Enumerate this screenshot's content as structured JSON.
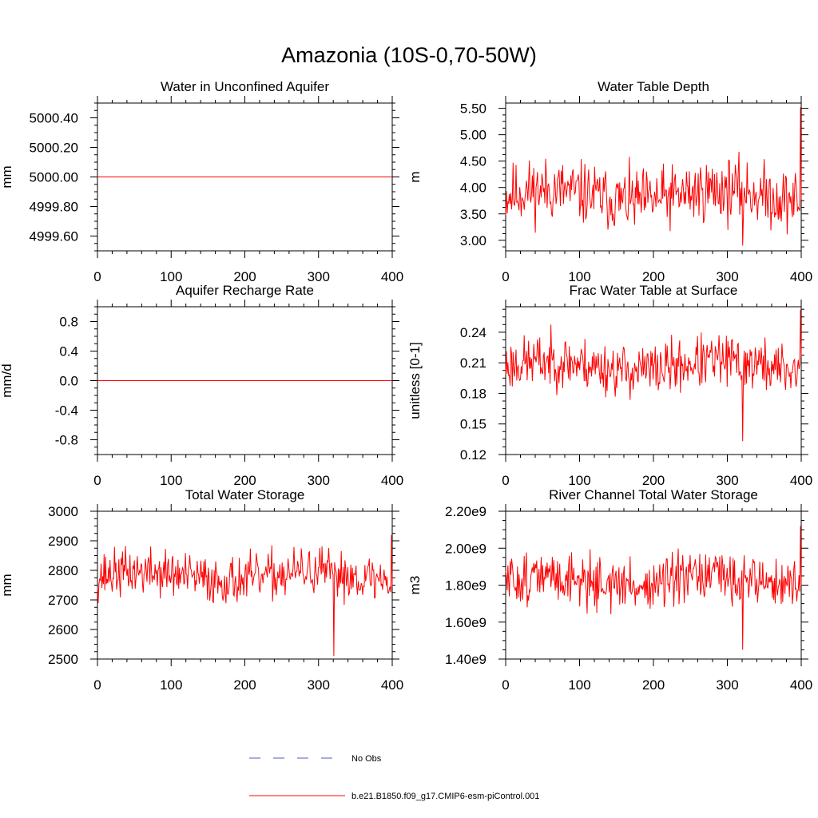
{
  "figure_title": "Amazonia (10S-0,70-50W)",
  "legend": [
    {
      "label": "No Obs",
      "color": "#4a5ec0",
      "dash": "dashed"
    },
    {
      "label": "b.e21.B1850.f09_g17.CMIP6-esm-piControl.001",
      "color": "#ff0000",
      "dash": "solid"
    }
  ],
  "chart_data": [
    {
      "type": "line",
      "title": "Water in Unconfined Aquifer",
      "xlabel": "",
      "ylabel": "mm",
      "xlim": [
        0,
        400
      ],
      "ylim": [
        4999.5,
        5000.5
      ],
      "xticks": [
        0,
        100,
        200,
        300,
        400
      ],
      "yticks": [
        4999.6,
        4999.8,
        5000.0,
        5000.2,
        5000.4
      ],
      "ytick_labels": [
        "4999.60",
        "4999.80",
        "5000.00",
        "5000.20",
        "5000.40"
      ],
      "series": [
        {
          "name": "b.e21.B1850.f09_g17.CMIP6-esm-piControl.001",
          "color": "#ff0000",
          "constant": 5000.0,
          "n": 400
        }
      ]
    },
    {
      "type": "line",
      "title": "Water Table Depth",
      "xlabel": "",
      "ylabel": "m",
      "xlim": [
        0,
        400
      ],
      "ylim": [
        2.8,
        5.6
      ],
      "xticks": [
        0,
        100,
        200,
        300,
        400
      ],
      "yticks": [
        3.0,
        3.5,
        4.0,
        4.5,
        5.0,
        5.5
      ],
      "ytick_labels": [
        "3.00",
        "3.50",
        "4.00",
        "4.50",
        "5.00",
        "5.50"
      ],
      "series": [
        {
          "name": "b.e21.B1850.f09_g17.CMIP6-esm-piControl.001",
          "color": "#ff0000",
          "mean": 3.85,
          "spread": 0.55,
          "min": 2.9,
          "max": 5.52,
          "n": 400,
          "seed": 11
        }
      ]
    },
    {
      "type": "line",
      "title": "Aquifer Recharge Rate",
      "xlabel": "",
      "ylabel": "mm/d",
      "xlim": [
        0,
        400
      ],
      "ylim": [
        -1.0,
        1.0
      ],
      "xticks": [
        0,
        100,
        200,
        300,
        400
      ],
      "yticks": [
        -0.8,
        -0.4,
        0.0,
        0.4,
        0.8
      ],
      "ytick_labels": [
        "-0.8",
        "-0.4",
        "0.0",
        "0.4",
        "0.8"
      ],
      "series": [
        {
          "name": "b.e21.B1850.f09_g17.CMIP6-esm-piControl.001",
          "color": "#ff0000",
          "constant": 0.0,
          "n": 400
        }
      ]
    },
    {
      "type": "line",
      "title": "Frac Water Table at Surface",
      "xlabel": "",
      "ylabel": "unitless [0-1]",
      "xlim": [
        0,
        400
      ],
      "ylim": [
        0.12,
        0.265
      ],
      "xticks": [
        0,
        100,
        200,
        300,
        400
      ],
      "yticks": [
        0.12,
        0.15,
        0.18,
        0.21,
        0.24
      ],
      "ytick_labels": [
        "0.12",
        "0.15",
        "0.18",
        "0.21",
        "0.24"
      ],
      "series": [
        {
          "name": "b.e21.B1850.f09_g17.CMIP6-esm-piControl.001",
          "color": "#ff0000",
          "mean": 0.207,
          "spread": 0.024,
          "min": 0.133,
          "max": 0.262,
          "n": 400,
          "seed": 23
        }
      ]
    },
    {
      "type": "line",
      "title": "Total Water Storage",
      "xlabel": "",
      "ylabel": "mm",
      "xlim": [
        0,
        400
      ],
      "ylim": [
        2500,
        3000
      ],
      "xticks": [
        0,
        100,
        200,
        300,
        400
      ],
      "yticks": [
        2500,
        2600,
        2700,
        2800,
        2900,
        3000
      ],
      "ytick_labels": [
        "2500",
        "2600",
        "2700",
        "2800",
        "2900",
        "3000"
      ],
      "series": [
        {
          "name": "b.e21.B1850.f09_g17.CMIP6-esm-piControl.001",
          "color": "#ff0000",
          "mean": 2780,
          "spread": 75,
          "min": 2510,
          "max": 2920,
          "n": 400,
          "seed": 37
        }
      ]
    },
    {
      "type": "line",
      "title": "River Channel Total Water Storage",
      "xlabel": "",
      "ylabel": "m3",
      "xlim": [
        0,
        400
      ],
      "ylim": [
        1400000000.0,
        2200000000.0
      ],
      "xticks": [
        0,
        100,
        200,
        300,
        400
      ],
      "yticks": [
        1400000000.0,
        1600000000.0,
        1800000000.0,
        2000000000.0,
        2200000000.0
      ],
      "ytick_labels": [
        "1.40e9",
        "1.60e9",
        "1.80e9",
        "2.00e9",
        "2.20e9"
      ],
      "series": [
        {
          "name": "b.e21.B1850.f09_g17.CMIP6-esm-piControl.001",
          "color": "#ff0000",
          "mean": 1820000000.0,
          "spread": 130000000.0,
          "min": 1450000000.0,
          "max": 2120000000.0,
          "n": 400,
          "seed": 51
        }
      ]
    }
  ]
}
